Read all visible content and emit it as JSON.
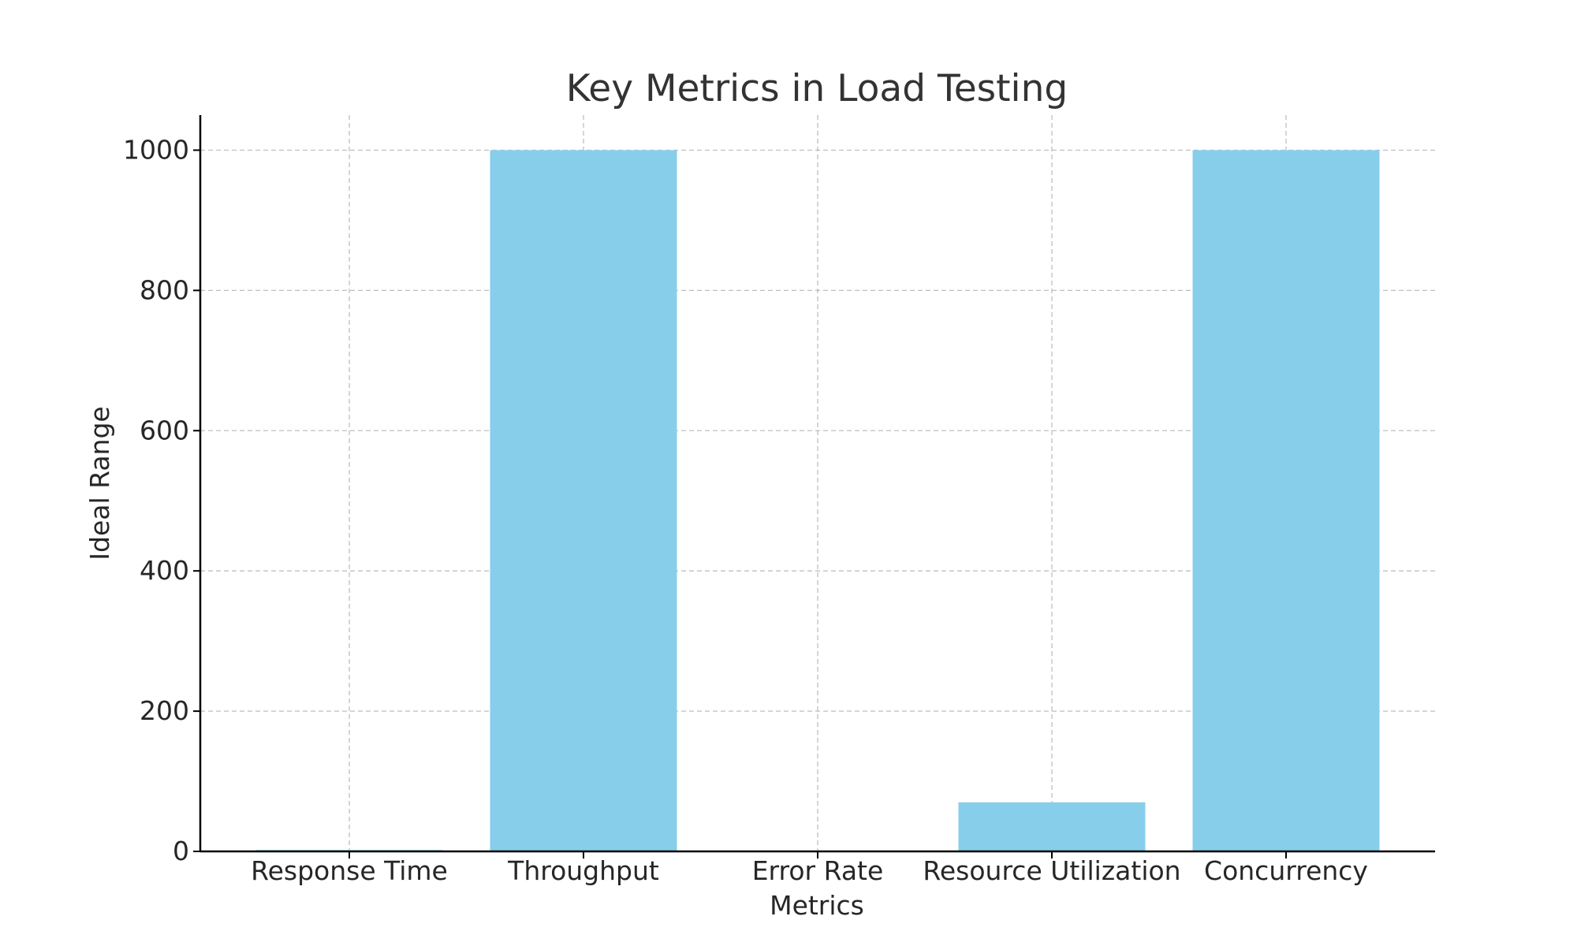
{
  "chart_data": {
    "type": "bar",
    "title": "Key Metrics in Load Testing",
    "xlabel": "Metrics",
    "ylabel": "Ideal Range",
    "categories": [
      "Response Time",
      "Throughput",
      "Error Rate",
      "Resource Utilization",
      "Concurrency"
    ],
    "values": [
      2,
      1000,
      0.5,
      70,
      1000
    ],
    "ylim": [
      0,
      1050
    ],
    "yticks": [
      0,
      200,
      400,
      600,
      800,
      1000
    ],
    "grid": true,
    "bar_color": "#87ceeb",
    "legend": "none"
  }
}
